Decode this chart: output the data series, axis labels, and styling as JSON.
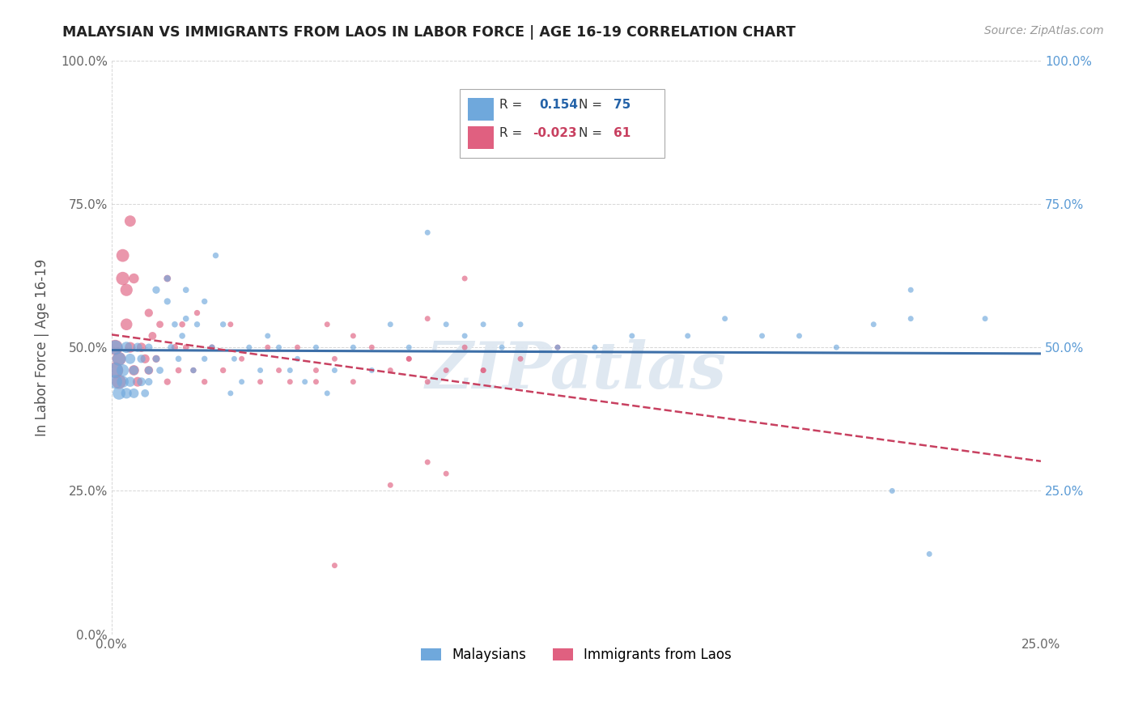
{
  "title": "MALAYSIAN VS IMMIGRANTS FROM LAOS IN LABOR FORCE | AGE 16-19 CORRELATION CHART",
  "source_text": "Source: ZipAtlas.com",
  "ylabel": "In Labor Force | Age 16-19",
  "xlim": [
    0.0,
    0.25
  ],
  "ylim": [
    0.0,
    1.0
  ],
  "xtick_labels": [
    "0.0%",
    "25.0%"
  ],
  "ytick_labels_left": [
    "0.0%",
    "25.0%",
    "50.0%",
    "75.0%",
    "100.0%"
  ],
  "ytick_labels_right": [
    "100.0%",
    "75.0%",
    "50.0%",
    "25.0%"
  ],
  "ytick_positions": [
    0.0,
    0.25,
    0.5,
    0.75,
    1.0
  ],
  "ytick_positions_right": [
    1.0,
    0.75,
    0.5,
    0.25
  ],
  "xtick_positions": [
    0.0,
    0.25
  ],
  "blue_R": 0.154,
  "blue_N": 75,
  "pink_R": -0.023,
  "pink_N": 61,
  "blue_color": "#6fa8dc",
  "pink_color": "#e06080",
  "blue_line_color": "#3d6fa8",
  "pink_line_color": "#c84060",
  "legend_box_blue": "#6fa8dc",
  "legend_box_pink": "#e06080",
  "watermark_color": "#d0d8e8",
  "background_color": "#ffffff",
  "grid_color": "#cccccc",
  "blue_x": [
    0.001,
    0.001,
    0.001,
    0.002,
    0.002,
    0.003,
    0.003,
    0.004,
    0.004,
    0.005,
    0.005,
    0.006,
    0.006,
    0.007,
    0.008,
    0.008,
    0.009,
    0.01,
    0.01,
    0.01,
    0.012,
    0.012,
    0.013,
    0.015,
    0.015,
    0.016,
    0.017,
    0.018,
    0.019,
    0.02,
    0.02,
    0.022,
    0.023,
    0.025,
    0.025,
    0.027,
    0.028,
    0.03,
    0.032,
    0.033,
    0.035,
    0.037,
    0.04,
    0.042,
    0.045,
    0.048,
    0.05,
    0.052,
    0.055,
    0.058,
    0.06,
    0.065,
    0.07,
    0.075,
    0.08,
    0.085,
    0.09,
    0.095,
    0.1,
    0.105,
    0.11,
    0.12,
    0.13,
    0.14,
    0.155,
    0.165,
    0.175,
    0.185,
    0.195,
    0.205,
    0.215,
    0.215,
    0.22,
    0.235,
    0.21
  ],
  "blue_y": [
    0.46,
    0.5,
    0.44,
    0.48,
    0.42,
    0.46,
    0.44,
    0.5,
    0.42,
    0.48,
    0.44,
    0.42,
    0.46,
    0.5,
    0.44,
    0.48,
    0.42,
    0.46,
    0.5,
    0.44,
    0.6,
    0.48,
    0.46,
    0.58,
    0.62,
    0.5,
    0.54,
    0.48,
    0.52,
    0.6,
    0.55,
    0.46,
    0.54,
    0.48,
    0.58,
    0.5,
    0.66,
    0.54,
    0.42,
    0.48,
    0.44,
    0.5,
    0.46,
    0.52,
    0.5,
    0.46,
    0.48,
    0.44,
    0.5,
    0.42,
    0.46,
    0.5,
    0.46,
    0.54,
    0.5,
    0.7,
    0.54,
    0.52,
    0.54,
    0.5,
    0.54,
    0.5,
    0.5,
    0.52,
    0.52,
    0.55,
    0.52,
    0.52,
    0.5,
    0.54,
    0.6,
    0.55,
    0.14,
    0.55,
    0.25
  ],
  "blue_sizes": [
    180,
    160,
    150,
    140,
    130,
    120,
    110,
    100,
    90,
    85,
    80,
    75,
    70,
    65,
    60,
    55,
    50,
    50,
    45,
    45,
    45,
    40,
    40,
    35,
    35,
    35,
    30,
    30,
    30,
    30,
    30,
    28,
    28,
    28,
    28,
    28,
    28,
    28,
    25,
    25,
    25,
    25,
    25,
    25,
    25,
    25,
    25,
    25,
    25,
    25,
    25,
    25,
    25,
    25,
    25,
    25,
    25,
    25,
    25,
    25,
    25,
    25,
    25,
    25,
    25,
    25,
    25,
    25,
    25,
    25,
    25,
    25,
    25,
    25,
    25
  ],
  "pink_x": [
    0.001,
    0.001,
    0.002,
    0.002,
    0.003,
    0.003,
    0.004,
    0.004,
    0.005,
    0.005,
    0.006,
    0.006,
    0.007,
    0.008,
    0.009,
    0.01,
    0.01,
    0.011,
    0.012,
    0.013,
    0.015,
    0.015,
    0.017,
    0.018,
    0.019,
    0.02,
    0.022,
    0.023,
    0.025,
    0.027,
    0.03,
    0.032,
    0.035,
    0.04,
    0.042,
    0.045,
    0.048,
    0.05,
    0.055,
    0.058,
    0.06,
    0.065,
    0.07,
    0.075,
    0.08,
    0.085,
    0.09,
    0.095,
    0.1,
    0.11,
    0.12,
    0.075,
    0.085,
    0.09,
    0.1,
    0.095,
    0.085,
    0.065,
    0.06,
    0.055,
    0.08
  ],
  "pink_y": [
    0.46,
    0.5,
    0.44,
    0.48,
    0.62,
    0.66,
    0.6,
    0.54,
    0.72,
    0.5,
    0.46,
    0.62,
    0.44,
    0.5,
    0.48,
    0.46,
    0.56,
    0.52,
    0.48,
    0.54,
    0.62,
    0.44,
    0.5,
    0.46,
    0.54,
    0.5,
    0.46,
    0.56,
    0.44,
    0.5,
    0.46,
    0.54,
    0.48,
    0.44,
    0.5,
    0.46,
    0.44,
    0.5,
    0.46,
    0.54,
    0.48,
    0.44,
    0.5,
    0.46,
    0.48,
    0.44,
    0.46,
    0.5,
    0.46,
    0.48,
    0.5,
    0.26,
    0.3,
    0.28,
    0.46,
    0.62,
    0.55,
    0.52,
    0.12,
    0.44,
    0.48
  ],
  "pink_sizes": [
    200,
    180,
    160,
    150,
    140,
    130,
    120,
    110,
    100,
    90,
    85,
    80,
    75,
    70,
    65,
    60,
    55,
    50,
    45,
    40,
    40,
    35,
    35,
    30,
    30,
    30,
    28,
    28,
    28,
    28,
    28,
    25,
    25,
    25,
    25,
    25,
    25,
    25,
    25,
    25,
    25,
    25,
    25,
    25,
    25,
    25,
    25,
    25,
    25,
    25,
    25,
    25,
    25,
    25,
    25,
    25,
    25,
    25,
    25,
    25,
    25
  ]
}
